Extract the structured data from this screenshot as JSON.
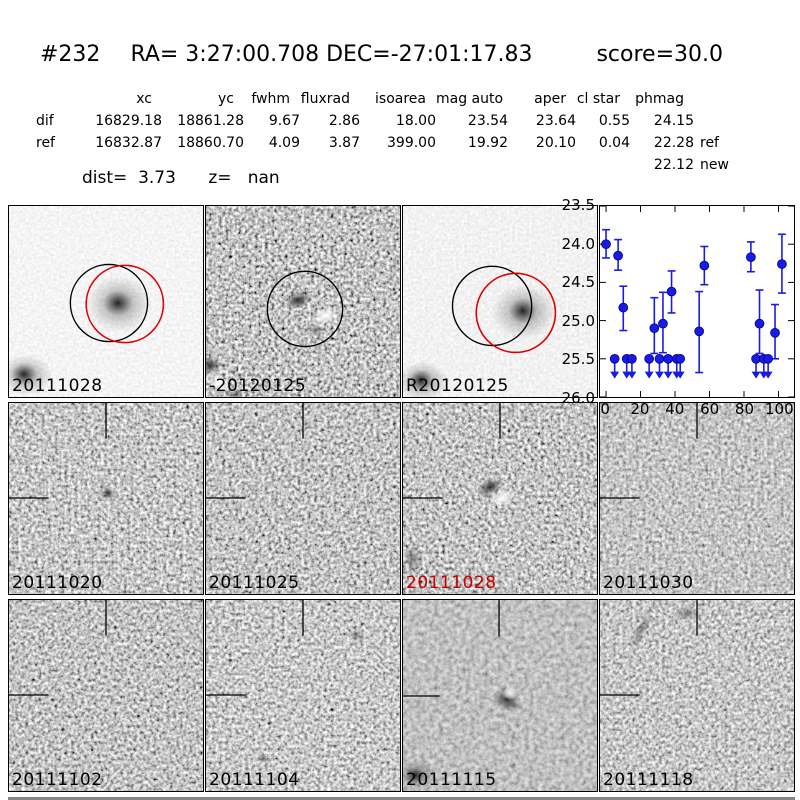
{
  "header": {
    "candidate_id": "#232",
    "coordinates": "RA= 3:27:00.708 DEC=-27:01:17.83",
    "score": "score=30.0"
  },
  "photometry": {
    "columns": [
      "xc",
      "yc",
      "fwhm",
      "fluxrad",
      "isoarea",
      "mag auto",
      "aper",
      "cl star",
      "phmag"
    ],
    "rows": [
      {
        "label": "dif",
        "xc": "16829.18",
        "yc": "18861.28",
        "fwhm": "9.67",
        "fluxrad": "2.86",
        "isoarea": "18.00",
        "mag_auto": "23.54",
        "aper": "23.64",
        "cl_star": "0.55",
        "phmag": "24.15",
        "suffix": ""
      },
      {
        "label": "ref",
        "xc": "16832.87",
        "yc": "18860.70",
        "fwhm": "4.09",
        "fluxrad": "3.87",
        "isoarea": "399.00",
        "mag_auto": "19.92",
        "aper": "20.10",
        "cl_star": "0.04",
        "phmag": "22.28",
        "suffix": "ref"
      },
      {
        "label": "",
        "xc": "",
        "yc": "",
        "fwhm": "",
        "fluxrad": "",
        "isoarea": "",
        "mag_auto": "",
        "aper": "",
        "cl_star": "",
        "phmag": "22.12",
        "suffix": "new"
      }
    ],
    "dist_line": "dist=  3.73      z=   nan"
  },
  "stamps": [
    {
      "label": "20111028",
      "color": "#000000"
    },
    {
      "label": "-20120125",
      "color": "#000000"
    },
    {
      "label": "R20120125",
      "color": "#000000"
    },
    {
      "label": "20111020",
      "color": "#000000"
    },
    {
      "label": "20111025",
      "color": "#000000"
    },
    {
      "label": "20111028",
      "color": "#cc0000"
    },
    {
      "label": "20111030",
      "color": "#000000"
    },
    {
      "label": "20111102",
      "color": "#000000"
    },
    {
      "label": "20111104",
      "color": "#000000"
    },
    {
      "label": "20111115",
      "color": "#000000"
    },
    {
      "label": "20111118",
      "color": "#000000"
    }
  ],
  "chart_data": {
    "type": "scatter",
    "title": "",
    "xlabel": "",
    "ylabel": "",
    "xlim": [
      -3.5,
      109
    ],
    "ylim": [
      23.5,
      26.0
    ],
    "y_inverted": true,
    "xticks": [
      0,
      20,
      40,
      60,
      80,
      100
    ],
    "yticks": [
      23.5,
      24.0,
      24.5,
      25.0,
      25.5,
      26.0
    ],
    "marker_color": "#1a1ae6",
    "detections": [
      {
        "x": 0,
        "mag": 24.0,
        "err_up": 0.19,
        "err_down": 0.18
      },
      {
        "x": 7,
        "mag": 24.15,
        "err_up": 0.21,
        "err_down": 0.19
      },
      {
        "x": 10,
        "mag": 24.83,
        "err_up": 0.28,
        "err_down": 0.3
      },
      {
        "x": 28,
        "mag": 25.1,
        "err_up": 0.4,
        "err_down": 0.33
      },
      {
        "x": 33,
        "mag": 25.04,
        "err_up": 0.41,
        "err_down": 0.38
      },
      {
        "x": 38,
        "mag": 24.62,
        "err_up": 0.27,
        "err_down": 0.28
      },
      {
        "x": 54,
        "mag": 25.14,
        "err_up": 0.52,
        "err_down": 0.54
      },
      {
        "x": 57,
        "mag": 24.28,
        "err_up": 0.25,
        "err_down": 0.25
      },
      {
        "x": 84,
        "mag": 24.17,
        "err_up": 0.2,
        "err_down": 0.19
      },
      {
        "x": 89,
        "mag": 25.04,
        "err_up": 0.44,
        "err_down": 0.39
      },
      {
        "x": 98,
        "mag": 25.16,
        "err_up": 0.37,
        "err_down": 0.34
      },
      {
        "x": 102,
        "mag": 24.26,
        "err_up": 0.39,
        "err_down": 0.38
      }
    ],
    "upper_limits": {
      "mag": 25.5,
      "x": [
        5,
        12,
        15,
        25,
        31,
        36,
        41,
        43,
        87,
        91.5,
        94
      ]
    }
  }
}
